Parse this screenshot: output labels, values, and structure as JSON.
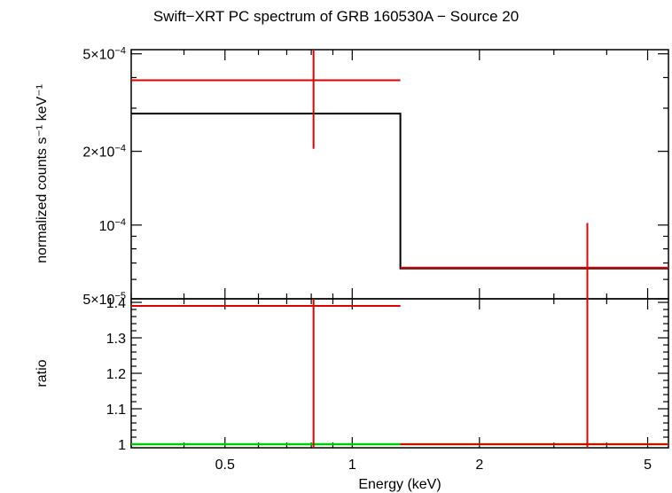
{
  "chart_data": [
    {
      "type": "line",
      "panel": "spectrum",
      "title": "Swift−XRT PC spectrum of GRB 160530A − Source 20",
      "xlabel": "",
      "ylabel": "normalized counts s⁻¹ keV⁻¹",
      "x_scale": "log",
      "y_scale": "log",
      "xlim": [
        0.3,
        5.6
      ],
      "ylim": [
        5e-05,
        0.00052
      ],
      "y_tick_values": [
        5e-05,
        0.0001,
        0.0002,
        0.0005
      ],
      "y_tick_labels": [
        "5×10⁻⁵",
        "10⁻⁴",
        "2×10⁻⁴",
        "5×10⁻⁴"
      ],
      "series": [
        {
          "kind": "data",
          "color": "#e00000",
          "points": [
            {
              "x": 0.81,
              "xlow": 0.3,
              "xhigh": 1.3,
              "y": 0.00039,
              "ylow": 0.000205,
              "yhigh": 0.00052
            },
            {
              "x": 3.6,
              "xlow": 1.3,
              "xhigh": 5.6,
              "y": 6.7e-05,
              "ylow": 5e-05,
              "yhigh": 0.000102
            }
          ]
        },
        {
          "kind": "model",
          "color": "#000000",
          "steps": [
            {
              "xlow": 0.3,
              "xhigh": 1.3,
              "y": 0.000285
            },
            {
              "xlow": 1.3,
              "xhigh": 5.6,
              "y": 6.65e-05
            }
          ]
        }
      ]
    },
    {
      "type": "line",
      "panel": "ratio",
      "xlabel": "Energy (keV)",
      "ylabel": "ratio",
      "x_scale": "log",
      "y_scale": "linear",
      "xlim": [
        0.3,
        5.6
      ],
      "ylim": [
        0.99,
        1.41
      ],
      "x_tick_values": [
        0.5,
        1,
        2,
        5
      ],
      "x_tick_labels": [
        "0.5",
        "1",
        "2",
        "5"
      ],
      "y_tick_values": [
        1,
        1.1,
        1.2,
        1.3,
        1.4
      ],
      "y_tick_labels": [
        "1",
        "1.1",
        "1.2",
        "1.3",
        "1.4"
      ],
      "series": [
        {
          "kind": "data",
          "color": "#e00000",
          "points": [
            {
              "x": 0.81,
              "xlow": 0.3,
              "xhigh": 1.3,
              "y": 1.39,
              "ylow": 0.99,
              "yhigh": 1.41
            },
            {
              "x": 3.6,
              "xlow": 1.3,
              "xhigh": 5.6,
              "y": 1.0,
              "ylow": 0.99,
              "yhigh": 1.41
            }
          ]
        },
        {
          "kind": "reference",
          "color": "#00cc00",
          "y": 1.0
        }
      ]
    }
  ]
}
